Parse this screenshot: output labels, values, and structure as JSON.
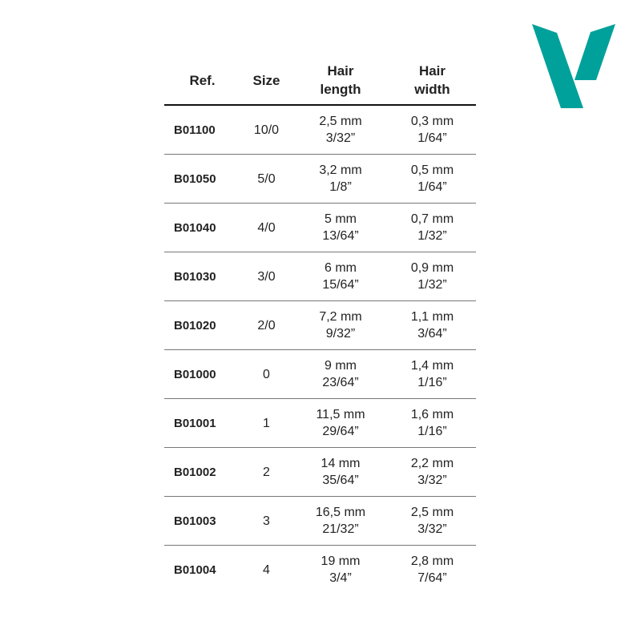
{
  "brand": {
    "logo_color": "#00a19a"
  },
  "table": {
    "headers": [
      {
        "l1": "Ref.",
        "l2": ""
      },
      {
        "l1": "Size",
        "l2": ""
      },
      {
        "l1": "Hair",
        "l2": "length"
      },
      {
        "l1": "Hair",
        "l2": "width"
      }
    ],
    "rows": [
      {
        "ref": "B01100",
        "size": "10/0",
        "length_mm": "2,5 mm",
        "length_in": "3/32”",
        "width_mm": "0,3 mm",
        "width_in": "1/64”"
      },
      {
        "ref": "B01050",
        "size": "5/0",
        "length_mm": "3,2 mm",
        "length_in": "1/8”",
        "width_mm": "0,5 mm",
        "width_in": "1/64”"
      },
      {
        "ref": "B01040",
        "size": "4/0",
        "length_mm": "5 mm",
        "length_in": "13/64”",
        "width_mm": "0,7 mm",
        "width_in": "1/32”"
      },
      {
        "ref": "B01030",
        "size": "3/0",
        "length_mm": "6 mm",
        "length_in": "15/64”",
        "width_mm": "0,9 mm",
        "width_in": "1/32”"
      },
      {
        "ref": "B01020",
        "size": "2/0",
        "length_mm": "7,2 mm",
        "length_in": "9/32”",
        "width_mm": "1,1 mm",
        "width_in": "3/64”"
      },
      {
        "ref": "B01000",
        "size": "0",
        "length_mm": "9 mm",
        "length_in": "23/64”",
        "width_mm": "1,4 mm",
        "width_in": "1/16”"
      },
      {
        "ref": "B01001",
        "size": "1",
        "length_mm": "11,5 mm",
        "length_in": "29/64”",
        "width_mm": "1,6 mm",
        "width_in": "1/16”"
      },
      {
        "ref": "B01002",
        "size": "2",
        "length_mm": "14 mm",
        "length_in": "35/64”",
        "width_mm": "2,2 mm",
        "width_in": "3/32”"
      },
      {
        "ref": "B01003",
        "size": "3",
        "length_mm": "16,5 mm",
        "length_in": "21/32”",
        "width_mm": "2,5 mm",
        "width_in": "3/32”"
      },
      {
        "ref": "B01004",
        "size": "4",
        "length_mm": "19 mm",
        "length_in": "3/4”",
        "width_mm": "2,8 mm",
        "width_in": "7/64”"
      }
    ]
  }
}
